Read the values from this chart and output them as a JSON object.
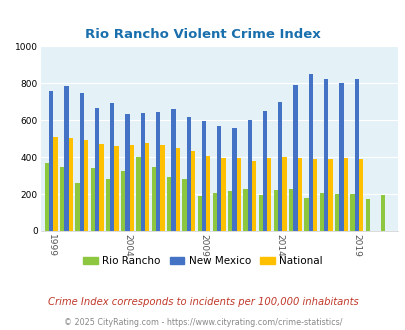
{
  "title": "Rio Rancho Violent Crime Index",
  "years": [
    1999,
    2000,
    2001,
    2002,
    2003,
    2004,
    2005,
    2006,
    2007,
    2008,
    2009,
    2010,
    2011,
    2012,
    2013,
    2014,
    2015,
    2016,
    2017,
    2018,
    2019,
    2020,
    2021
  ],
  "rio_rancho": [
    370,
    345,
    260,
    340,
    280,
    325,
    400,
    345,
    290,
    280,
    190,
    205,
    215,
    225,
    195,
    220,
    225,
    180,
    205,
    200,
    200,
    175,
    195
  ],
  "new_mexico": [
    760,
    785,
    745,
    665,
    690,
    635,
    640,
    645,
    660,
    615,
    595,
    570,
    560,
    600,
    650,
    700,
    790,
    850,
    820,
    800,
    820,
    0,
    0
  ],
  "national": [
    510,
    505,
    495,
    470,
    460,
    465,
    475,
    465,
    450,
    435,
    405,
    395,
    395,
    380,
    395,
    400,
    395,
    390,
    390,
    395,
    390,
    0,
    0
  ],
  "colors": {
    "rio_rancho": "#8dc63f",
    "new_mexico": "#4472c4",
    "national": "#ffc000"
  },
  "background_color": "#e4f2f7",
  "ylim": [
    0,
    1000
  ],
  "yticks": [
    0,
    200,
    400,
    600,
    800,
    1000
  ],
  "x_tick_years": [
    1999,
    2004,
    2009,
    2014,
    2019
  ],
  "subtitle": "Crime Index corresponds to incidents per 100,000 inhabitants",
  "footer": "© 2025 CityRating.com - https://www.cityrating.com/crime-statistics/",
  "legend_labels": [
    "Rio Rancho",
    "New Mexico",
    "National"
  ],
  "title_color": "#1a6fad",
  "subtitle_color": "#c0392b",
  "footer_color": "#888888",
  "bar_width": 0.28
}
